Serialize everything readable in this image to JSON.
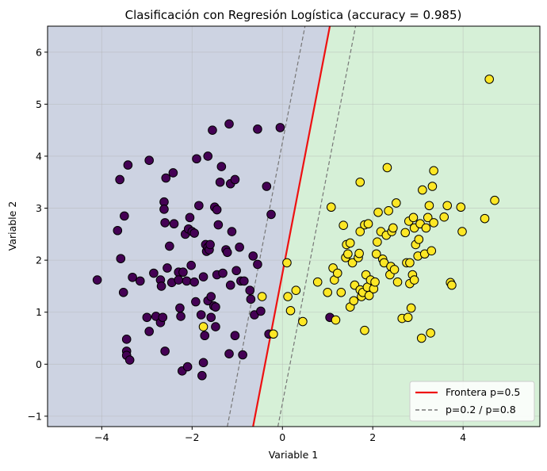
{
  "chart_data": {
    "type": "scatter",
    "title": "Clasificación con Regresión Logística (accuracy = 0.985)",
    "xlabel": "Variable 1",
    "ylabel": "Variable 2",
    "xlim": [
      -5.2,
      5.7
    ],
    "ylim": [
      -1.2,
      6.5
    ],
    "xticks": [
      -4,
      -2,
      0,
      2,
      4
    ],
    "yticks": [
      -1,
      0,
      1,
      2,
      3,
      4,
      5,
      6
    ],
    "xtick_labels": [
      "−4",
      "−2",
      "0",
      "2",
      "4"
    ],
    "ytick_labels": [
      "−1",
      "0",
      "1",
      "2",
      "3",
      "4",
      "5",
      "6"
    ],
    "grid": true,
    "legend_position": "lower-right",
    "colors": {
      "class0_point": "#440154",
      "class1_point": "#fde725",
      "class0_region": "#cdd3e2",
      "class1_region": "#d6f0d7",
      "boundary": "#ee1111",
      "prob_lines": "#777777"
    },
    "legend": [
      {
        "label": "Frontera p=0.5",
        "style": "solid-red"
      },
      {
        "label": "p=0.2 / p=0.8",
        "style": "dashed-gray"
      }
    ],
    "lines": {
      "boundary": {
        "x": [
          -0.65,
          1.05
        ],
        "y": [
          -1.2,
          6.5
        ]
      },
      "p02": {
        "x": [
          -1.22,
          0.5
        ],
        "y": [
          -1.2,
          6.5
        ]
      },
      "p08": {
        "x": [
          -0.1,
          1.62
        ],
        "y": [
          -1.2,
          6.5
        ]
      }
    },
    "series": [
      {
        "class": 0,
        "points": [
          [
            -4.1,
            1.62
          ],
          [
            -3.65,
            2.57
          ],
          [
            -3.6,
            3.55
          ],
          [
            -3.58,
            2.03
          ],
          [
            -3.52,
            1.38
          ],
          [
            -3.5,
            2.85
          ],
          [
            -3.42,
            3.83
          ],
          [
            -3.45,
            0.48
          ],
          [
            -3.45,
            0.25
          ],
          [
            -3.45,
            0.17
          ],
          [
            -3.38,
            0.08
          ],
          [
            -3.32,
            1.67
          ],
          [
            -3.15,
            1.6
          ],
          [
            -2.95,
            3.92
          ],
          [
            -3.0,
            0.9
          ],
          [
            -2.95,
            0.63
          ],
          [
            -2.85,
            1.75
          ],
          [
            -2.8,
            0.92
          ],
          [
            -2.7,
            0.8
          ],
          [
            -2.7,
            1.62
          ],
          [
            -2.68,
            1.5
          ],
          [
            -2.65,
            0.9
          ],
          [
            -2.62,
            3.12
          ],
          [
            -2.62,
            2.98
          ],
          [
            -2.6,
            2.72
          ],
          [
            -2.6,
            0.25
          ],
          [
            -2.58,
            3.58
          ],
          [
            -2.55,
            1.85
          ],
          [
            -2.5,
            2.27
          ],
          [
            -2.45,
            1.57
          ],
          [
            -2.42,
            3.68
          ],
          [
            -2.4,
            2.7
          ],
          [
            -2.3,
            1.77
          ],
          [
            -2.3,
            1.62
          ],
          [
            -2.27,
            1.08
          ],
          [
            -2.25,
            0.92
          ],
          [
            -2.22,
            -0.13
          ],
          [
            -2.2,
            1.77
          ],
          [
            -2.15,
            2.5
          ],
          [
            -2.12,
            1.6
          ],
          [
            -2.1,
            -0.05
          ],
          [
            -2.08,
            2.6
          ],
          [
            -2.05,
            2.82
          ],
          [
            -2.02,
            1.9
          ],
          [
            -2.0,
            2.55
          ],
          [
            -1.95,
            1.58
          ],
          [
            -1.95,
            2.52
          ],
          [
            -1.92,
            1.2
          ],
          [
            -1.9,
            3.95
          ],
          [
            -1.85,
            3.05
          ],
          [
            -1.8,
            0.95
          ],
          [
            -1.78,
            -0.22
          ],
          [
            -1.75,
            0.03
          ],
          [
            -1.75,
            1.68
          ],
          [
            -1.72,
            0.55
          ],
          [
            -1.7,
            2.3
          ],
          [
            -1.68,
            2.17
          ],
          [
            -1.65,
            4.0
          ],
          [
            -1.65,
            2.25
          ],
          [
            -1.65,
            1.22
          ],
          [
            -1.62,
            2.2
          ],
          [
            -1.6,
            2.3
          ],
          [
            -1.58,
            1.3
          ],
          [
            -1.58,
            0.9
          ],
          [
            -1.55,
            4.5
          ],
          [
            -1.52,
            1.12
          ],
          [
            -1.5,
            3.02
          ],
          [
            -1.48,
            1.1
          ],
          [
            -1.48,
            0.72
          ],
          [
            -1.45,
            2.97
          ],
          [
            -1.45,
            1.72
          ],
          [
            -1.42,
            2.68
          ],
          [
            -1.38,
            3.5
          ],
          [
            -1.35,
            3.8
          ],
          [
            -1.32,
            1.75
          ],
          [
            -1.25,
            2.2
          ],
          [
            -1.22,
            2.15
          ],
          [
            -1.18,
            4.62
          ],
          [
            -1.18,
            0.2
          ],
          [
            -1.15,
            3.47
          ],
          [
            -1.15,
            1.52
          ],
          [
            -1.12,
            2.55
          ],
          [
            -1.05,
            3.55
          ],
          [
            -1.05,
            0.55
          ],
          [
            -1.02,
            1.8
          ],
          [
            -0.95,
            2.25
          ],
          [
            -0.92,
            1.6
          ],
          [
            -0.88,
            0.18
          ],
          [
            -0.85,
            1.6
          ],
          [
            -0.72,
            1.42
          ],
          [
            -0.7,
            1.25
          ],
          [
            -0.65,
            2.08
          ],
          [
            -0.62,
            0.95
          ],
          [
            -0.55,
            4.52
          ],
          [
            -0.55,
            1.92
          ],
          [
            -0.48,
            1.02
          ],
          [
            -0.35,
            3.42
          ],
          [
            -0.3,
            0.58
          ],
          [
            -0.25,
            2.88
          ],
          [
            -0.05,
            4.55
          ],
          [
            1.05,
            0.9
          ]
        ]
      },
      {
        "class": 1,
        "points": [
          [
            -1.75,
            0.72
          ],
          [
            -0.45,
            1.3
          ],
          [
            -0.2,
            0.58
          ],
          [
            0.1,
            1.95
          ],
          [
            0.12,
            1.3
          ],
          [
            0.18,
            1.03
          ],
          [
            0.3,
            1.42
          ],
          [
            0.45,
            0.82
          ],
          [
            0.78,
            1.58
          ],
          [
            1.0,
            1.38
          ],
          [
            1.08,
            3.02
          ],
          [
            1.12,
            1.85
          ],
          [
            1.15,
            1.62
          ],
          [
            1.18,
            0.85
          ],
          [
            1.22,
            1.75
          ],
          [
            1.3,
            1.38
          ],
          [
            1.35,
            2.67
          ],
          [
            1.4,
            2.05
          ],
          [
            1.42,
            2.3
          ],
          [
            1.45,
            2.12
          ],
          [
            1.5,
            2.33
          ],
          [
            1.5,
            1.1
          ],
          [
            1.55,
            1.95
          ],
          [
            1.58,
            1.22
          ],
          [
            1.6,
            1.52
          ],
          [
            1.68,
            2.05
          ],
          [
            1.7,
            2.13
          ],
          [
            1.72,
            1.43
          ],
          [
            1.72,
            2.55
          ],
          [
            1.72,
            3.5
          ],
          [
            1.75,
            1.3
          ],
          [
            1.78,
            1.38
          ],
          [
            1.82,
            2.68
          ],
          [
            1.82,
            0.65
          ],
          [
            1.85,
            1.72
          ],
          [
            1.88,
            1.48
          ],
          [
            1.9,
            2.7
          ],
          [
            1.92,
            1.32
          ],
          [
            1.95,
            1.62
          ],
          [
            2.02,
            1.45
          ],
          [
            2.05,
            1.58
          ],
          [
            2.08,
            2.12
          ],
          [
            2.1,
            2.35
          ],
          [
            2.12,
            2.92
          ],
          [
            2.18,
            2.55
          ],
          [
            2.22,
            2.02
          ],
          [
            2.25,
            1.95
          ],
          [
            2.3,
            2.48
          ],
          [
            2.32,
            3.78
          ],
          [
            2.35,
            2.95
          ],
          [
            2.38,
            1.72
          ],
          [
            2.4,
            1.88
          ],
          [
            2.42,
            2.55
          ],
          [
            2.45,
            2.62
          ],
          [
            2.48,
            1.82
          ],
          [
            2.52,
            3.1
          ],
          [
            2.55,
            1.58
          ],
          [
            2.65,
            0.88
          ],
          [
            2.72,
            2.53
          ],
          [
            2.75,
            1.95
          ],
          [
            2.78,
            0.9
          ],
          [
            2.8,
            2.75
          ],
          [
            2.82,
            1.55
          ],
          [
            2.82,
            1.95
          ],
          [
            2.85,
            1.08
          ],
          [
            2.88,
            1.72
          ],
          [
            2.9,
            2.82
          ],
          [
            2.92,
            1.62
          ],
          [
            2.92,
            2.62
          ],
          [
            2.95,
            2.3
          ],
          [
            3.0,
            2.08
          ],
          [
            3.02,
            2.4
          ],
          [
            3.05,
            2.7
          ],
          [
            3.08,
            0.5
          ],
          [
            3.1,
            3.35
          ],
          [
            3.15,
            2.12
          ],
          [
            3.18,
            2.62
          ],
          [
            3.22,
            2.82
          ],
          [
            3.25,
            3.05
          ],
          [
            3.28,
            0.6
          ],
          [
            3.3,
            2.18
          ],
          [
            3.32,
            3.42
          ],
          [
            3.35,
            2.72
          ],
          [
            3.35,
            3.72
          ],
          [
            3.58,
            2.83
          ],
          [
            3.65,
            3.05
          ],
          [
            3.72,
            1.57
          ],
          [
            3.75,
            1.52
          ],
          [
            3.95,
            3.02
          ],
          [
            3.98,
            2.55
          ],
          [
            4.48,
            2.8
          ],
          [
            4.58,
            5.48
          ],
          [
            4.7,
            3.15
          ]
        ]
      }
    ]
  }
}
